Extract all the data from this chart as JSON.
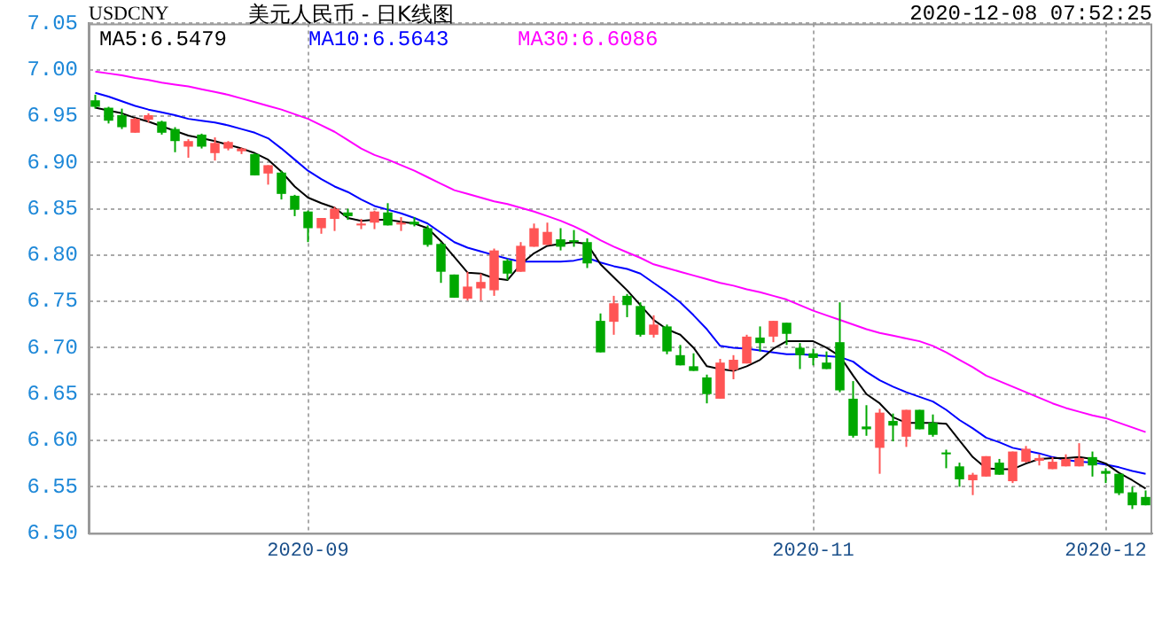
{
  "chart_data": {
    "type": "candlestick",
    "title": "美元人民币 - 日K线图",
    "subtitle": "USDCNY",
    "annotations": [
      "2020-12-08 07:52:25"
    ],
    "categories": [
      null,
      null,
      null,
      null,
      null,
      null,
      null,
      null,
      null,
      null,
      null,
      null,
      null,
      null,
      null,
      null,
      "2020-09",
      null,
      null,
      null,
      null,
      null,
      null,
      null,
      null,
      null,
      null,
      null,
      null,
      null,
      null,
      null,
      null,
      null,
      null,
      null,
      null,
      null,
      null,
      null,
      null,
      null,
      null,
      null,
      null,
      null,
      null,
      null,
      null,
      null,
      null,
      null,
      null,
      null,
      "2020-11",
      null,
      null,
      null,
      null,
      null,
      null,
      null,
      null,
      null,
      null,
      null,
      null,
      null,
      null,
      null,
      null,
      null,
      null,
      null,
      null,
      null,
      "2020-12",
      null,
      null,
      null
    ],
    "ohlc": [
      [
        6.967,
        6.973,
        6.958,
        6.96
      ],
      [
        6.959,
        6.96,
        6.942,
        6.945
      ],
      [
        6.951,
        6.958,
        6.936,
        6.938
      ],
      [
        6.932,
        6.948,
        6.932,
        6.947
      ],
      [
        6.946,
        6.953,
        6.943,
        6.951
      ],
      [
        6.944,
        6.945,
        6.93,
        6.932
      ],
      [
        6.936,
        6.938,
        6.911,
        6.923
      ],
      [
        6.917,
        6.925,
        6.905,
        6.923
      ],
      [
        6.93,
        6.931,
        6.915,
        6.917
      ],
      [
        6.91,
        6.927,
        6.902,
        6.921
      ],
      [
        6.915,
        6.923,
        6.913,
        6.922
      ],
      [
        6.912,
        6.916,
        6.909,
        6.915
      ],
      [
        6.909,
        6.91,
        6.886,
        6.886
      ],
      [
        6.888,
        6.897,
        6.876,
        6.897
      ],
      [
        6.889,
        6.891,
        6.86,
        6.866
      ],
      [
        6.864,
        6.865,
        6.842,
        6.849
      ],
      [
        6.847,
        6.848,
        6.814,
        6.829
      ],
      [
        6.829,
        6.84,
        6.823,
        6.84
      ],
      [
        6.839,
        6.852,
        6.826,
        6.85
      ],
      [
        6.846,
        6.85,
        6.838,
        6.842
      ],
      [
        6.832,
        6.839,
        6.828,
        6.834
      ],
      [
        6.835,
        6.848,
        6.828,
        6.847
      ],
      [
        6.846,
        6.856,
        6.832,
        6.832
      ],
      [
        6.833,
        6.841,
        6.826,
        6.835
      ],
      [
        6.836,
        6.841,
        6.831,
        6.833
      ],
      [
        6.829,
        6.832,
        6.809,
        6.811
      ],
      [
        6.812,
        6.814,
        6.77,
        6.782
      ],
      [
        6.779,
        6.779,
        6.754,
        6.754
      ],
      [
        6.753,
        6.782,
        6.751,
        6.766
      ],
      [
        6.764,
        6.78,
        6.751,
        6.771
      ],
      [
        6.762,
        6.807,
        6.756,
        6.805
      ],
      [
        6.794,
        6.796,
        6.773,
        6.78
      ],
      [
        6.782,
        6.814,
        6.782,
        6.81
      ],
      [
        6.809,
        6.834,
        6.809,
        6.829
      ],
      [
        6.811,
        6.835,
        6.811,
        6.825
      ],
      [
        6.817,
        6.829,
        6.805,
        6.809
      ],
      [
        6.816,
        6.827,
        6.809,
        6.814
      ],
      [
        6.814,
        6.818,
        6.786,
        6.791
      ],
      [
        6.729,
        6.737,
        6.695,
        6.695
      ],
      [
        6.728,
        6.756,
        6.714,
        6.748
      ],
      [
        6.756,
        6.758,
        6.733,
        6.746
      ],
      [
        6.745,
        6.749,
        6.712,
        6.714
      ],
      [
        6.714,
        6.735,
        6.711,
        6.725
      ],
      [
        6.723,
        6.725,
        6.693,
        6.696
      ],
      [
        6.692,
        6.703,
        6.681,
        6.681
      ],
      [
        6.68,
        6.694,
        6.675,
        6.675
      ],
      [
        6.668,
        6.671,
        6.64,
        6.65
      ],
      [
        6.645,
        6.688,
        6.645,
        6.684
      ],
      [
        6.676,
        6.692,
        6.666,
        6.687
      ],
      [
        6.683,
        6.714,
        6.683,
        6.712
      ],
      [
        6.711,
        6.723,
        6.696,
        6.705
      ],
      [
        6.712,
        6.729,
        6.706,
        6.729
      ],
      [
        6.727,
        6.727,
        6.703,
        6.715
      ],
      [
        6.7,
        6.705,
        6.677,
        6.692
      ],
      [
        6.694,
        6.699,
        6.681,
        6.689
      ],
      [
        6.684,
        6.696,
        6.677,
        6.677
      ],
      [
        6.706,
        6.749,
        6.652,
        6.654
      ],
      [
        6.645,
        6.664,
        6.603,
        6.605
      ],
      [
        6.615,
        6.638,
        6.605,
        6.612
      ],
      [
        6.592,
        6.634,
        6.564,
        6.63
      ],
      [
        6.621,
        6.629,
        6.599,
        6.616
      ],
      [
        6.604,
        6.633,
        6.593,
        6.633
      ],
      [
        6.633,
        6.633,
        6.612,
        6.612
      ],
      [
        6.619,
        6.628,
        6.604,
        6.606
      ],
      [
        6.587,
        6.59,
        6.57,
        6.585
      ],
      [
        6.572,
        6.576,
        6.55,
        6.558
      ],
      [
        6.557,
        6.565,
        6.541,
        6.563
      ],
      [
        6.561,
        6.583,
        6.561,
        6.583
      ],
      [
        6.576,
        6.58,
        6.563,
        6.563
      ],
      [
        6.556,
        6.588,
        6.554,
        6.588
      ],
      [
        6.577,
        6.594,
        6.576,
        6.591
      ],
      [
        6.578,
        6.585,
        6.573,
        6.581
      ],
      [
        6.569,
        6.582,
        6.569,
        6.577
      ],
      [
        6.572,
        6.585,
        6.572,
        6.58
      ],
      [
        6.572,
        6.597,
        6.572,
        6.581
      ],
      [
        6.582,
        6.588,
        6.561,
        6.573
      ],
      [
        6.567,
        6.57,
        6.554,
        6.564
      ],
      [
        6.564,
        6.564,
        6.541,
        6.543
      ],
      [
        6.544,
        6.55,
        6.526,
        6.53
      ],
      [
        6.539,
        6.546,
        6.53,
        6.53
      ]
    ],
    "colors": [
      "#00a800",
      "#00a800",
      "#00a800",
      "#ff5555",
      "#ff5555",
      "#00a800",
      "#00a800",
      "#ff5555",
      "#00a800",
      "#ff5555",
      "#ff5555",
      "#ff5555",
      "#00a800",
      "#ff5555",
      "#00a800",
      "#00a800",
      "#00a800",
      "#ff5555",
      "#ff5555",
      "#00a800",
      "#ff5555",
      "#ff5555",
      "#00a800",
      "#ff5555",
      "#00a800",
      "#00a800",
      "#00a800",
      "#00a800",
      "#ff5555",
      "#ff5555",
      "#ff5555",
      "#00a800",
      "#ff5555",
      "#ff5555",
      "#ff5555",
      "#00a800",
      "#00a800",
      "#00a800",
      "#00a800",
      "#ff5555",
      "#00a800",
      "#00a800",
      "#ff5555",
      "#00a800",
      "#00a800",
      "#00a800",
      "#00a800",
      "#ff5555",
      "#ff5555",
      "#ff5555",
      "#00a800",
      "#ff5555",
      "#00a800",
      "#00a800",
      "#00a800",
      "#00a800",
      "#00a800",
      "#00a800",
      "#00a800",
      "#ff5555",
      "#00a800",
      "#ff5555",
      "#00a800",
      "#00a800",
      "#00a800",
      "#00a800",
      "#ff5555",
      "#ff5555",
      "#00a800",
      "#ff5555",
      "#ff5555",
      "#ff5555",
      "#ff5555",
      "#ff5555",
      "#ff5555",
      "#00a800",
      "#00a800",
      "#00a800",
      "#00a800",
      "#00a800"
    ],
    "series": [
      {
        "name": "MA5:6.5479",
        "type": "line",
        "color": "#000000",
        "values": [
          6.959,
          6.956,
          6.953,
          6.948,
          6.944,
          6.939,
          6.934,
          6.929,
          6.926,
          6.923,
          6.919,
          6.915,
          6.91,
          6.903,
          6.89,
          6.874,
          6.862,
          6.856,
          6.851,
          6.84,
          6.837,
          6.838,
          6.838,
          6.836,
          6.834,
          6.829,
          6.815,
          6.798,
          6.781,
          6.78,
          6.775,
          6.773,
          6.79,
          6.802,
          6.81,
          6.812,
          6.814,
          6.812,
          6.79,
          6.776,
          6.762,
          6.746,
          6.73,
          6.72,
          6.714,
          6.7,
          6.68,
          6.677,
          6.675,
          6.68,
          6.687,
          6.699,
          6.707,
          6.707,
          6.707,
          6.7,
          6.691,
          6.67,
          6.65,
          6.64,
          6.625,
          6.619,
          6.619,
          6.619,
          6.618,
          6.6,
          6.582,
          6.57,
          6.569,
          6.569,
          6.575,
          6.58,
          6.581,
          6.581,
          6.582,
          6.58,
          6.575,
          6.565,
          6.557,
          6.548
        ]
      },
      {
        "name": "MA10:6.5643",
        "type": "line",
        "color": "#0000ff",
        "values": [
          6.975,
          6.971,
          6.966,
          6.961,
          6.957,
          6.954,
          6.951,
          6.947,
          6.945,
          6.943,
          6.94,
          6.936,
          6.932,
          6.926,
          6.915,
          6.903,
          6.891,
          6.882,
          6.874,
          6.868,
          6.86,
          6.853,
          6.849,
          6.845,
          6.84,
          6.834,
          6.824,
          6.814,
          6.808,
          6.804,
          6.8,
          6.796,
          6.793,
          6.793,
          6.793,
          6.793,
          6.794,
          6.797,
          6.792,
          6.788,
          6.785,
          6.78,
          6.77,
          6.76,
          6.749,
          6.735,
          6.72,
          6.702,
          6.7,
          6.699,
          6.697,
          6.695,
          6.693,
          6.693,
          6.692,
          6.691,
          6.69,
          6.685,
          6.674,
          6.665,
          6.658,
          6.652,
          6.647,
          6.642,
          6.633,
          6.622,
          6.613,
          6.603,
          6.598,
          6.592,
          6.589,
          6.586,
          6.582,
          6.579,
          6.577,
          6.576,
          6.574,
          6.571,
          6.567,
          6.564
        ]
      },
      {
        "name": "MA30:6.6086",
        "type": "line",
        "color": "#ff00ff",
        "values": [
          6.998,
          6.996,
          6.994,
          6.991,
          6.989,
          6.986,
          6.984,
          6.982,
          6.979,
          6.976,
          6.973,
          6.969,
          6.965,
          6.961,
          6.957,
          6.952,
          6.947,
          6.94,
          6.933,
          6.924,
          6.915,
          6.908,
          6.903,
          6.897,
          6.891,
          6.884,
          6.877,
          6.87,
          6.866,
          6.862,
          6.858,
          6.855,
          6.851,
          6.847,
          6.842,
          6.837,
          6.831,
          6.824,
          6.816,
          6.809,
          6.803,
          6.797,
          6.79,
          6.786,
          6.782,
          6.778,
          6.774,
          6.77,
          6.767,
          6.763,
          6.76,
          6.756,
          6.752,
          6.746,
          6.74,
          6.735,
          6.73,
          6.725,
          6.72,
          6.716,
          6.713,
          6.71,
          6.707,
          6.702,
          6.695,
          6.687,
          6.679,
          6.67,
          6.664,
          6.658,
          6.652,
          6.646,
          6.64,
          6.635,
          6.631,
          6.627,
          6.624,
          6.619,
          6.614,
          6.609
        ]
      }
    ],
    "ylim": [
      6.5,
      7.05
    ],
    "yticks": [
      {
        "value": 6.5,
        "label": "6.50"
      },
      {
        "value": 6.55,
        "label": "6.55"
      },
      {
        "value": 6.6,
        "label": "6.60"
      },
      {
        "value": 6.65,
        "label": "6.65"
      },
      {
        "value": 6.7,
        "label": "6.70"
      },
      {
        "value": 6.75,
        "label": "6.75"
      },
      {
        "value": 6.8,
        "label": "6.80"
      },
      {
        "value": 6.85,
        "label": "6.85"
      },
      {
        "value": 6.9,
        "label": "6.90"
      },
      {
        "value": 6.95,
        "label": "6.95"
      },
      {
        "value": 7,
        "label": "7.00"
      },
      {
        "value": 7.05,
        "label": "7.05"
      }
    ],
    "grid": true,
    "legend": "top left",
    "marker": "none"
  }
}
